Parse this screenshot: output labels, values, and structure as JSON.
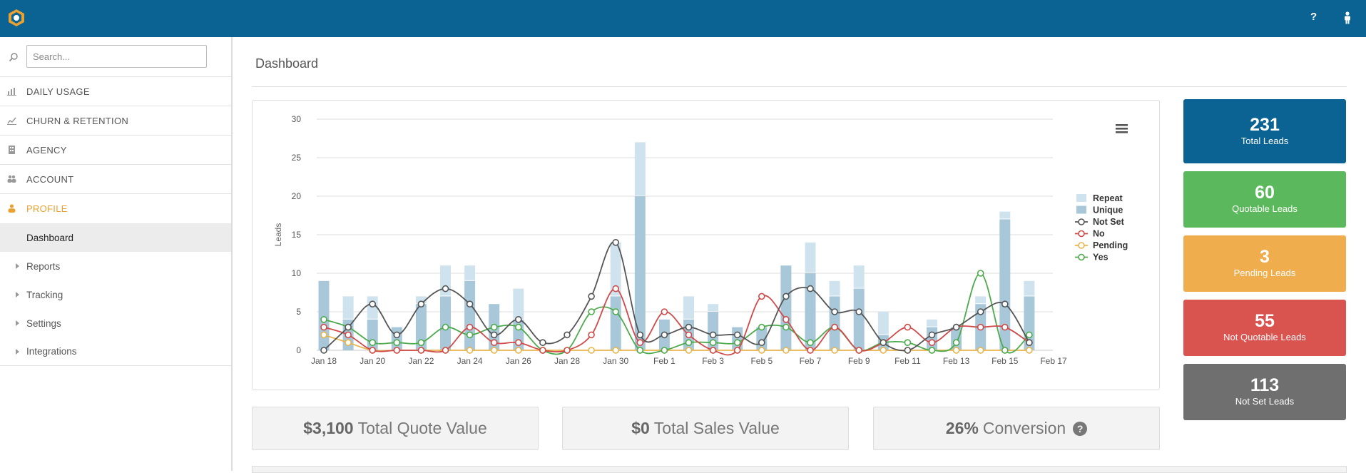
{
  "app": {
    "top_icons": {
      "help": "?",
      "user": "user-icon"
    }
  },
  "sidebar": {
    "search_placeholder": "Search...",
    "nav": [
      {
        "label": "DAILY USAGE",
        "icon": "bar-chart-icon"
      },
      {
        "label": "CHURN & RETENTION",
        "icon": "line-chart-icon"
      },
      {
        "label": "AGENCY",
        "icon": "building-icon"
      },
      {
        "label": "ACCOUNT",
        "icon": "users-icon"
      },
      {
        "label": "PROFILE",
        "icon": "user-icon",
        "active": true
      }
    ],
    "sub": [
      {
        "label": "Dashboard",
        "selected": true
      },
      {
        "label": "Reports"
      },
      {
        "label": "Tracking"
      },
      {
        "label": "Settings"
      },
      {
        "label": "Integrations"
      }
    ]
  },
  "page": {
    "title": "Dashboard"
  },
  "stats": [
    {
      "value": "231",
      "label": "Total Leads",
      "color": "#0b6394"
    },
    {
      "value": "60",
      "label": "Quotable Leads",
      "color": "#5cb85c"
    },
    {
      "value": "3",
      "label": "Pending Leads",
      "color": "#f0ad4e"
    },
    {
      "value": "55",
      "label": "Not Quotable Leads",
      "color": "#d9534f"
    },
    {
      "value": "113",
      "label": "Not Set Leads",
      "color": "#6f6f6f"
    }
  ],
  "kpis": [
    {
      "value": "$3,100",
      "label": "Total Quote Value"
    },
    {
      "value": "$0",
      "label": "Total Sales Value"
    },
    {
      "value": "26%",
      "label": "Conversion",
      "help": "?"
    }
  ],
  "chart_data": {
    "type": "bar",
    "ylabel": "Leads",
    "ylim": [
      0,
      30
    ],
    "yticks": [
      0,
      5,
      10,
      15,
      20,
      25,
      30
    ],
    "x": [
      "Jan 18",
      "Jan 19",
      "Jan 20",
      "Jan 21",
      "Jan 22",
      "Jan 23",
      "Jan 24",
      "Jan 25",
      "Jan 26",
      "Jan 27",
      "Jan 28",
      "Jan 29",
      "Jan 30",
      "Jan 31",
      "Feb 1",
      "Feb 2",
      "Feb 3",
      "Feb 4",
      "Feb 5",
      "Feb 6",
      "Feb 7",
      "Feb 8",
      "Feb 9",
      "Feb 10",
      "Feb 11",
      "Feb 12",
      "Feb 13",
      "Feb 14",
      "Feb 15",
      "Feb 16"
    ],
    "xtick_labels": [
      "Jan 18",
      "Jan 20",
      "Jan 22",
      "Jan 24",
      "Jan 26",
      "Jan 28",
      "Jan 30",
      "Feb 1",
      "Feb 3",
      "Feb 5",
      "Feb 7",
      "Feb 9",
      "Feb 11",
      "Feb 13",
      "Feb 15",
      "Feb 17"
    ],
    "legend_position": "right",
    "series": [
      {
        "name": "Repeat",
        "kind": "bar-stack-top",
        "color": "#cfe3ee",
        "values": [
          0,
          3,
          3,
          0,
          1,
          4,
          2,
          0,
          4,
          0,
          0,
          0,
          7,
          7,
          0,
          3,
          1,
          0,
          0,
          0,
          4,
          2,
          3,
          3,
          0,
          1,
          0,
          1,
          1,
          2
        ]
      },
      {
        "name": "Unique",
        "kind": "bar",
        "color": "#a8c8da",
        "values": [
          9,
          4,
          4,
          3,
          6,
          7,
          9,
          6,
          4,
          0,
          0,
          0,
          7,
          20,
          4,
          4,
          5,
          3,
          3,
          11,
          10,
          7,
          8,
          2,
          0,
          3,
          3,
          6,
          17,
          7
        ]
      },
      {
        "name": "Not Set",
        "kind": "line",
        "color": "#555555",
        "values": [
          0,
          3,
          6,
          2,
          6,
          8,
          6,
          2,
          4,
          1,
          2,
          7,
          14,
          2,
          2,
          3,
          2,
          2,
          1,
          7,
          8,
          5,
          5,
          1,
          0,
          2,
          3,
          5,
          6,
          1
        ]
      },
      {
        "name": "No",
        "kind": "line",
        "color": "#d04a4a",
        "values": [
          3,
          2,
          0,
          0,
          0,
          0,
          3,
          1,
          1,
          0,
          0,
          2,
          8,
          1,
          5,
          2,
          0,
          0,
          7,
          4,
          0,
          3,
          0,
          1,
          3,
          1,
          3,
          3,
          3,
          1
        ]
      },
      {
        "name": "Pending",
        "kind": "line",
        "color": "#e9b44c",
        "values": [
          2,
          1,
          0,
          0,
          0,
          0,
          0,
          0,
          0,
          0,
          0,
          0,
          0,
          0,
          0,
          0,
          0,
          0,
          0,
          0,
          0,
          0,
          0,
          0,
          0,
          0,
          0,
          0,
          0,
          0
        ]
      },
      {
        "name": "Yes",
        "kind": "line",
        "color": "#4caa4c",
        "values": [
          4,
          3,
          1,
          1,
          1,
          3,
          2,
          3,
          3,
          0,
          0,
          5,
          5,
          0,
          0,
          1,
          1,
          1,
          3,
          3,
          1,
          3,
          0,
          1,
          1,
          0,
          1,
          10,
          0,
          2
        ]
      }
    ]
  }
}
